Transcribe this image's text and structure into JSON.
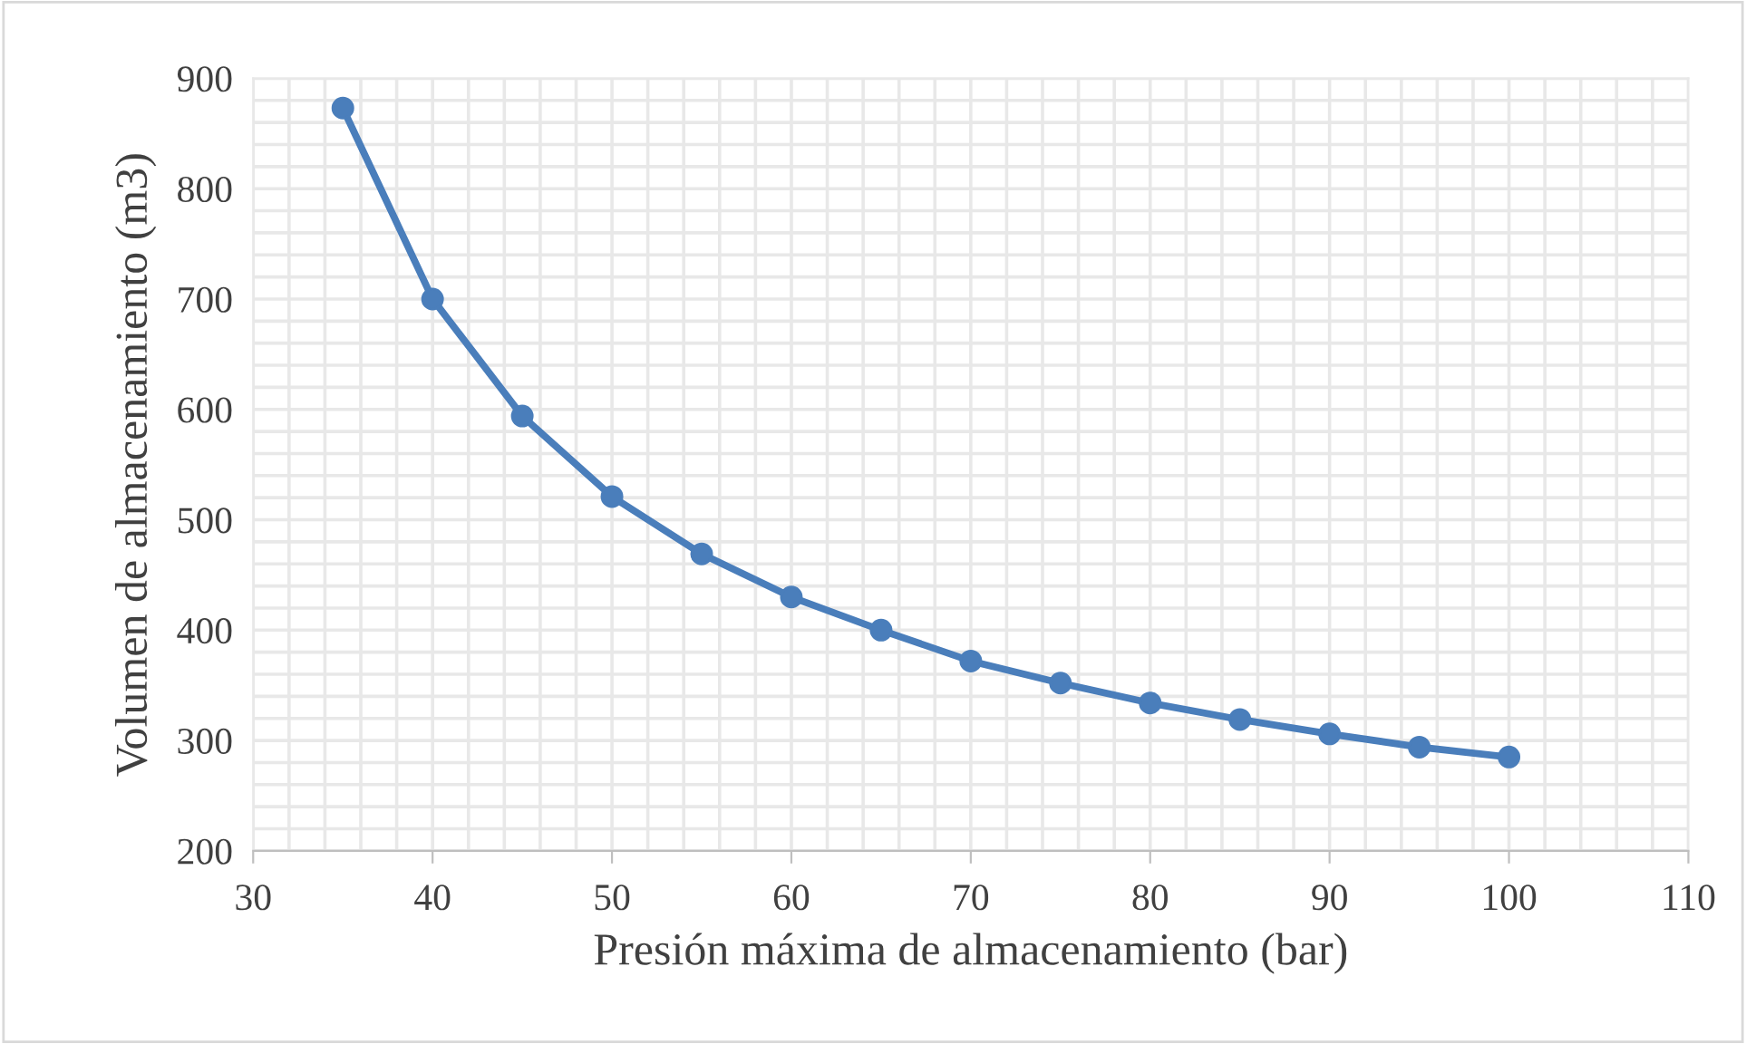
{
  "chart_data": {
    "type": "line",
    "xlabel": "Presión máxima de almacenamiento (bar)",
    "ylabel": "Volumen de almacenamiento (m3)",
    "x": [
      35,
      40,
      45,
      50,
      55,
      60,
      65,
      70,
      75,
      80,
      85,
      90,
      95,
      100
    ],
    "series": [
      {
        "color": "#4a7ebb",
        "values": [
          873,
          700,
          594,
          521,
          469,
          430,
          400,
          372,
          352,
          334,
          319,
          306,
          294,
          285
        ]
      }
    ],
    "xlim": [
      30,
      110
    ],
    "xticks": [
      30,
      40,
      50,
      60,
      70,
      80,
      90,
      100,
      110
    ],
    "ylim": [
      200,
      900
    ],
    "yticks": [
      200,
      300,
      400,
      500,
      600,
      700,
      800,
      900
    ],
    "grid": true,
    "marker": "circle",
    "line_style": "solid"
  }
}
